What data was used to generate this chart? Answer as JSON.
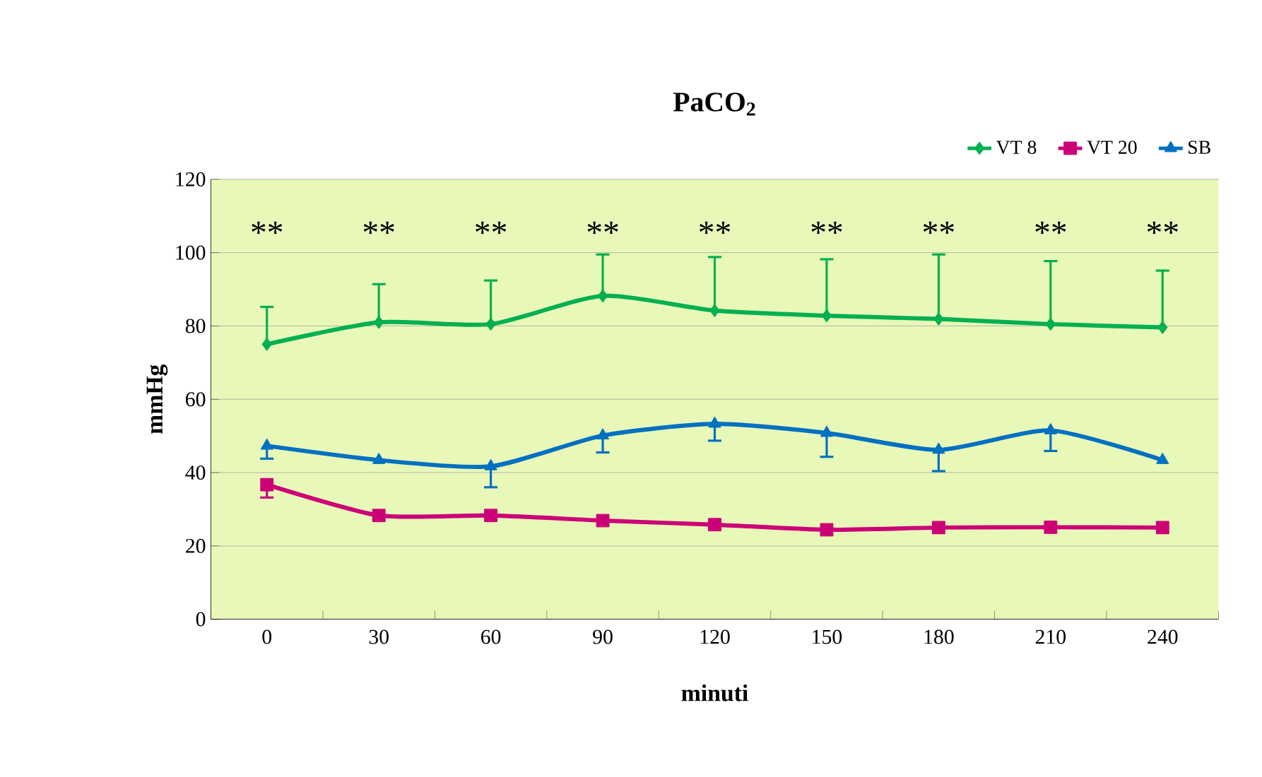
{
  "chart_data": {
    "type": "line",
    "title": "PaCO$_{2}$",
    "xlabel": "minuti",
    "ylabel": "mmHg",
    "categories": [
      "0",
      "30",
      "60",
      "90",
      "120",
      "150",
      "180",
      "210",
      "240"
    ],
    "series": [
      {
        "name": "VT 8",
        "color": "#00b050",
        "marker": "diamond",
        "values": [
          75,
          81,
          80.5,
          88.2,
          84.2,
          82.8,
          81.9,
          80.5,
          79.6
        ],
        "errors": [
          [
            75,
            85.2
          ],
          [
            81,
            91.4
          ],
          [
            80.5,
            92.4
          ],
          [
            88.2,
            99.5
          ],
          [
            84.2,
            98.8
          ],
          [
            82.8,
            98.2
          ],
          [
            81.9,
            99.5
          ],
          [
            80.5,
            97.7
          ],
          [
            79.6,
            95.1
          ]
        ]
      },
      {
        "name": "VT 20",
        "color": "#cc0077",
        "marker": "square",
        "values": [
          36.7,
          28.3,
          28.3,
          26.9,
          25.8,
          24.4,
          25,
          25.1,
          25
        ],
        "errors": [
          [
            33.2,
            36.7
          ],
          null,
          null,
          null,
          null,
          null,
          null,
          null,
          null
        ]
      },
      {
        "name": "SB",
        "color": "#0070c0",
        "marker": "triangle",
        "values": [
          47.3,
          43.4,
          41.7,
          50.1,
          53.3,
          50.8,
          46.2,
          51.5,
          43.4
        ],
        "errors": [
          [
            43.8,
            47.3
          ],
          null,
          [
            36,
            41.7
          ],
          [
            45.5,
            50.1
          ],
          [
            48.7,
            53.3
          ],
          [
            44.3,
            50.8
          ],
          [
            40.4,
            46.2
          ],
          [
            45.9,
            51.5
          ],
          null
        ]
      }
    ],
    "ylim": [
      0,
      120
    ],
    "yticks": [
      0,
      20,
      40,
      60,
      80,
      100,
      120
    ],
    "grid": "y",
    "legend": "top right",
    "annotations": [
      "**",
      "**",
      "**",
      "**",
      "**",
      "**",
      "**",
      "**",
      "**"
    ]
  }
}
